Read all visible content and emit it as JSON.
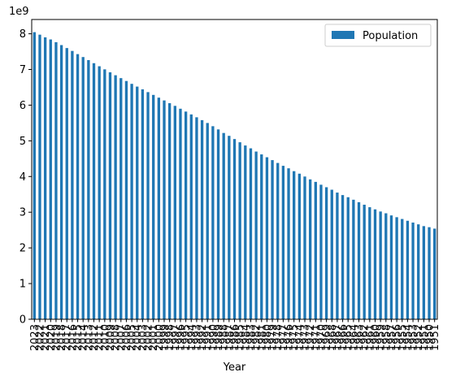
{
  "chart_data": {
    "type": "bar",
    "title": "",
    "xlabel": "Year",
    "ylabel": "",
    "y_scale_label": "1e9",
    "ylim": [
      0,
      8.4
    ],
    "yticks": [
      0,
      1,
      2,
      3,
      4,
      5,
      6,
      7,
      8
    ],
    "grid": false,
    "legend_position": "top-right",
    "series_color": "#1f77b4",
    "series": [
      {
        "name": "Population",
        "values": [
          8.045,
          7.975,
          7.9,
          7.841,
          7.764,
          7.683,
          7.6,
          7.519,
          7.43,
          7.348,
          7.263,
          7.176,
          7.09,
          7.003,
          6.92,
          6.838,
          6.757,
          6.677,
          6.597,
          6.52,
          6.443,
          6.365,
          6.287,
          6.21,
          6.132,
          6.055,
          5.98,
          5.9,
          5.82,
          5.74,
          5.66,
          5.58,
          5.5,
          5.41,
          5.32,
          5.22,
          5.14,
          5.05,
          4.96,
          4.87,
          4.79,
          4.7,
          4.62,
          4.54,
          4.46,
          4.38,
          4.3,
          4.23,
          4.15,
          4.08,
          4.0,
          3.92,
          3.85,
          3.77,
          3.7,
          3.63,
          3.55,
          3.48,
          3.42,
          3.35,
          3.28,
          3.21,
          3.14,
          3.08,
          3.02,
          2.97,
          2.91,
          2.86,
          2.81,
          2.76,
          2.71,
          2.66,
          2.61,
          2.58,
          2.54
        ]
      }
    ],
    "categories": [
      "2023",
      "2022",
      "2021",
      "2020",
      "2019",
      "2018",
      "2017",
      "2016",
      "2015",
      "2014",
      "2013",
      "2012",
      "2011",
      "2010",
      "2009",
      "2008",
      "2007",
      "2006",
      "2005",
      "2004",
      "2003",
      "2002",
      "2001",
      "2000",
      "1999",
      "1998",
      "1997",
      "1996",
      "1995",
      "1994",
      "1993",
      "1992",
      "1991",
      "1990",
      "1989",
      "1988",
      "1987",
      "1986",
      "1985",
      "1984",
      "1983",
      "1982",
      "1981",
      "1980",
      "1979",
      "1978",
      "1977",
      "1976",
      "1975",
      "1974",
      "1973",
      "1972",
      "1971",
      "1970",
      "1969",
      "1968",
      "1967",
      "1966",
      "1965",
      "1964",
      "1963",
      "1962",
      "1961",
      "1960",
      "1959",
      "1958",
      "1957",
      "1956",
      "1955",
      "1954",
      "1953",
      "1952",
      "1951",
      "1950",
      "1951"
    ]
  }
}
